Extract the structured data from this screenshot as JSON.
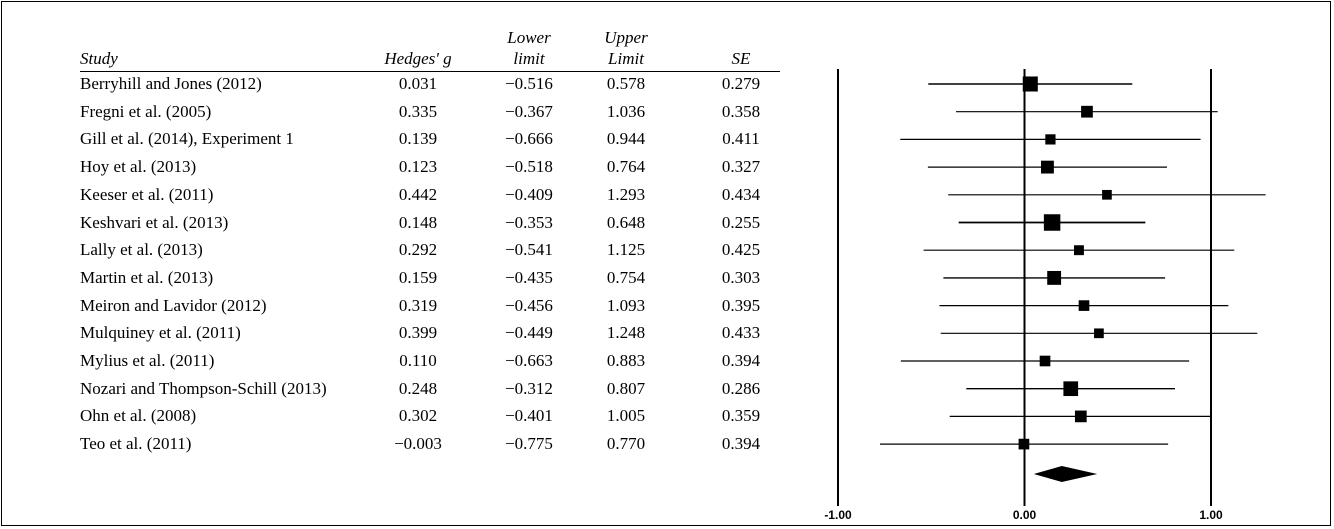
{
  "table": {
    "headers": {
      "study": "Study",
      "g": "Hedges' g",
      "lower_top": "Lower",
      "lower_bottom": "limit",
      "upper_top": "Upper",
      "upper_bottom": "Limit",
      "se": "SE"
    },
    "rows": [
      {
        "study": "Berryhill and Jones (2012)",
        "g": "0.031",
        "lower": "−0.516",
        "upper": "0.578",
        "se": "0.279"
      },
      {
        "study": "Fregni et al. (2005)",
        "g": "0.335",
        "lower": "−0.367",
        "upper": "1.036",
        "se": "0.358"
      },
      {
        "study": "Gill et al. (2014), Experiment 1",
        "g": "0.139",
        "lower": "−0.666",
        "upper": "0.944",
        "se": "0.411"
      },
      {
        "study": "Hoy et al. (2013)",
        "g": "0.123",
        "lower": "−0.518",
        "upper": "0.764",
        "se": "0.327"
      },
      {
        "study": "Keeser et al. (2011)",
        "g": "0.442",
        "lower": "−0.409",
        "upper": "1.293",
        "se": "0.434"
      },
      {
        "study": "Keshvari et al. (2013)",
        "g": "0.148",
        "lower": "−0.353",
        "upper": "0.648",
        "se": "0.255"
      },
      {
        "study": "Lally et al. (2013)",
        "g": "0.292",
        "lower": "−0.541",
        "upper": "1.125",
        "se": "0.425"
      },
      {
        "study": "Martin et al. (2013)",
        "g": "0.159",
        "lower": "−0.435",
        "upper": "0.754",
        "se": "0.303"
      },
      {
        "study": "Meiron and Lavidor (2012)",
        "g": "0.319",
        "lower": "−0.456",
        "upper": "1.093",
        "se": "0.395"
      },
      {
        "study": "Mulquiney et al. (2011)",
        "g": "0.399",
        "lower": "−0.449",
        "upper": "1.248",
        "se": "0.433"
      },
      {
        "study": "Mylius et al. (2011)",
        "g": "0.110",
        "lower": "−0.663",
        "upper": "0.883",
        "se": "0.394"
      },
      {
        "study": "Nozari and Thompson-Schill (2013)",
        "g": "0.248",
        "lower": "−0.312",
        "upper": "0.807",
        "se": "0.286"
      },
      {
        "study": "Ohn et al. (2008)",
        "g": "0.302",
        "lower": "−0.401",
        "upper": "1.005",
        "se": "0.359"
      },
      {
        "study": "Teo et al. (2011)",
        "g": "−0.003",
        "lower": "−0.775",
        "upper": "0.770",
        "se": "0.394"
      }
    ]
  },
  "chart_data": {
    "type": "forest",
    "xlim": [
      -1.0,
      1.0
    ],
    "xticks": [
      "-1.00",
      "0.00",
      "1.00"
    ],
    "reference_lines": [
      -1.0,
      0.0,
      1.0
    ],
    "studies": [
      {
        "name": "Berryhill and Jones (2012)",
        "g": 0.031,
        "lower": -0.516,
        "upper": 0.578,
        "se": 0.279
      },
      {
        "name": "Fregni et al. (2005)",
        "g": 0.335,
        "lower": -0.367,
        "upper": 1.036,
        "se": 0.358
      },
      {
        "name": "Gill et al. (2014), Experiment 1",
        "g": 0.139,
        "lower": -0.666,
        "upper": 0.944,
        "se": 0.411
      },
      {
        "name": "Hoy et al. (2013)",
        "g": 0.123,
        "lower": -0.518,
        "upper": 0.764,
        "se": 0.327
      },
      {
        "name": "Keeser et al. (2011)",
        "g": 0.442,
        "lower": -0.409,
        "upper": 1.293,
        "se": 0.434
      },
      {
        "name": "Keshvari et al. (2013)",
        "g": 0.148,
        "lower": -0.353,
        "upper": 0.648,
        "se": 0.255
      },
      {
        "name": "Lally et al. (2013)",
        "g": 0.292,
        "lower": -0.541,
        "upper": 1.125,
        "se": 0.425
      },
      {
        "name": "Martin et al. (2013)",
        "g": 0.159,
        "lower": -0.435,
        "upper": 0.754,
        "se": 0.303
      },
      {
        "name": "Meiron and Lavidor (2012)",
        "g": 0.319,
        "lower": -0.456,
        "upper": 1.093,
        "se": 0.395
      },
      {
        "name": "Mulquiney et al. (2011)",
        "g": 0.399,
        "lower": -0.449,
        "upper": 1.248,
        "se": 0.433
      },
      {
        "name": "Mylius et al. (2011)",
        "g": 0.11,
        "lower": -0.663,
        "upper": 0.883,
        "se": 0.394
      },
      {
        "name": "Nozari and Thompson-Schill (2013)",
        "g": 0.248,
        "lower": -0.312,
        "upper": 0.807,
        "se": 0.286
      },
      {
        "name": "Ohn et al. (2008)",
        "g": 0.302,
        "lower": -0.401,
        "upper": 1.005,
        "se": 0.359
      },
      {
        "name": "Teo et al. (2011)",
        "g": -0.003,
        "lower": -0.775,
        "upper": 0.77,
        "se": 0.394
      }
    ],
    "summary": {
      "g": 0.2,
      "lower": 0.05,
      "upper": 0.39
    }
  }
}
